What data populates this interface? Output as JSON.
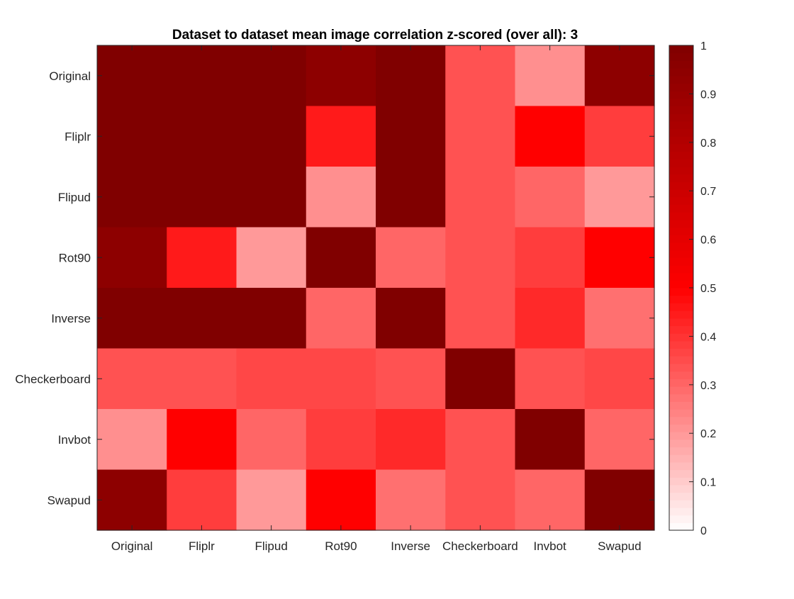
{
  "chart_data": {
    "type": "heatmap",
    "title": "Dataset to dataset mean image correlation z-scored (over all): 3",
    "xlabel": "",
    "ylabel": "",
    "x_categories": [
      "Original",
      "Fliplr",
      "Flipud",
      "Rot90",
      "Inverse",
      "Checkerboard",
      "Invbot",
      "Swapud"
    ],
    "y_categories": [
      "Original",
      "Fliplr",
      "Flipud",
      "Rot90",
      "Inverse",
      "Checkerboard",
      "Invbot",
      "Swapud"
    ],
    "values": [
      [
        1.0,
        1.0,
        1.0,
        0.95,
        1.0,
        0.34,
        0.22,
        0.95
      ],
      [
        1.0,
        1.0,
        1.0,
        0.45,
        1.0,
        0.34,
        0.5,
        0.38
      ],
      [
        1.0,
        1.0,
        1.0,
        0.22,
        1.0,
        0.34,
        0.3,
        0.2
      ],
      [
        0.95,
        0.45,
        0.2,
        1.0,
        0.3,
        0.34,
        0.38,
        0.5
      ],
      [
        1.0,
        1.0,
        1.0,
        0.3,
        1.0,
        0.34,
        0.42,
        0.28
      ],
      [
        0.34,
        0.34,
        0.36,
        0.36,
        0.34,
        1.0,
        0.34,
        0.36
      ],
      [
        0.22,
        0.5,
        0.3,
        0.38,
        0.42,
        0.34,
        1.0,
        0.3
      ],
      [
        0.95,
        0.38,
        0.2,
        0.5,
        0.28,
        0.34,
        0.3,
        1.0
      ]
    ],
    "colorbar": {
      "range": [
        0,
        1
      ],
      "ticks": [
        "0",
        "0.1",
        "0.2",
        "0.3",
        "0.4",
        "0.5",
        "0.6",
        "0.7",
        "0.8",
        "0.9",
        "1"
      ],
      "placement": "right",
      "colormap_stops": [
        "#ffffff",
        "#ff0000",
        "#800000"
      ]
    },
    "grid": false,
    "legend": "none"
  }
}
